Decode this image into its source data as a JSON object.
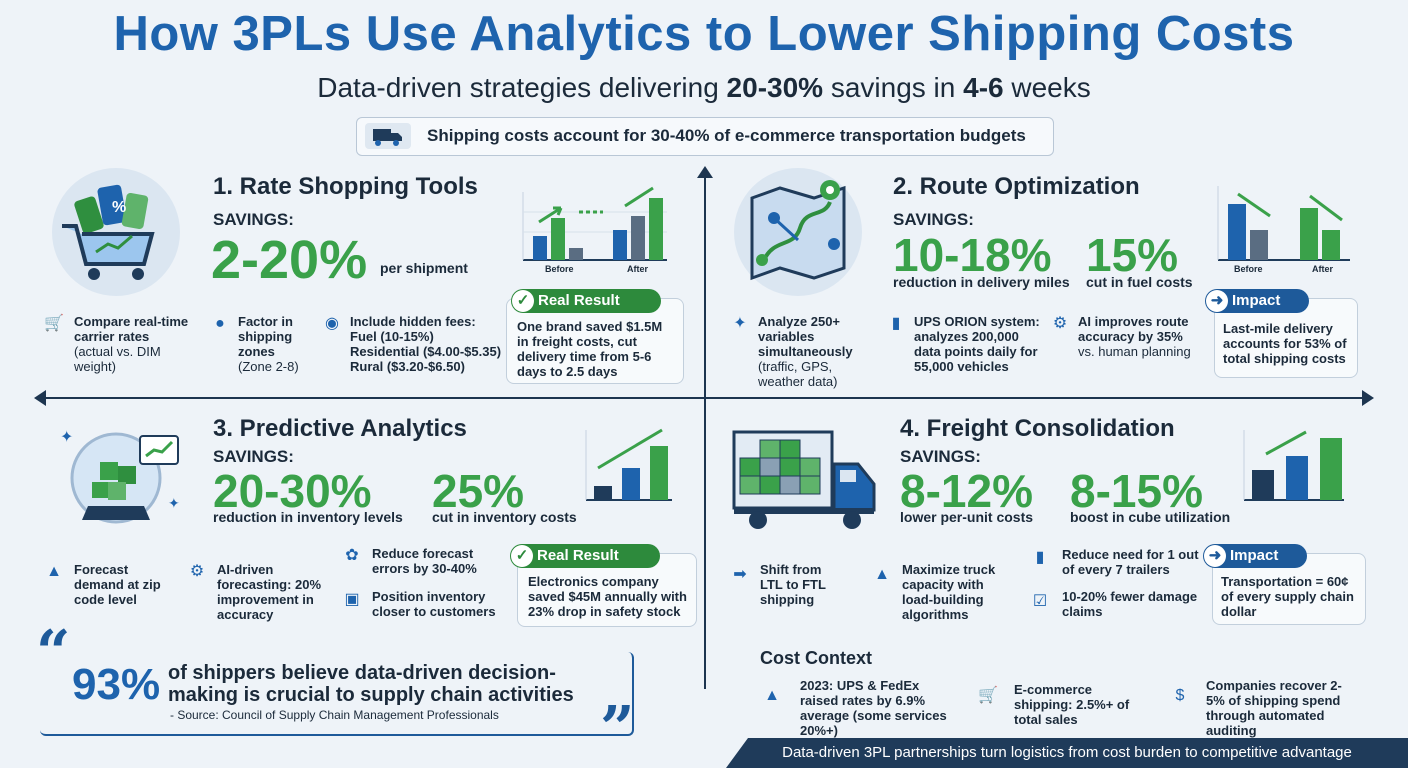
{
  "header": {
    "title": "How 3PLs Use Analytics to Lower Shipping Costs",
    "subtitle_pre": "Data-driven strategies delivering ",
    "subtitle_b1": "20-30%",
    "subtitle_mid": " savings in ",
    "subtitle_b2": "4-6",
    "subtitle_post": " weeks",
    "banner": "Shipping costs account for 30-40% of e-commerce transportation budgets"
  },
  "colors": {
    "title": "#1e63ad",
    "green": "#3aa14a",
    "navy": "#1f3b5a",
    "blue": "#1e5a9a"
  },
  "s1": {
    "title": "1. Rate Shopping Tools",
    "savings_label": "SAVINGS:",
    "big": "2-20%",
    "unit": "per shipment",
    "chart_before": "Before",
    "chart_after": "After",
    "b1": "Compare real-time carrier rates",
    "b1n": "(actual vs. DIM weight)",
    "b2": "Factor in shipping zones",
    "b2n": "(Zone 2-8)",
    "b3": "Include hidden fees:",
    "b3a": "Fuel (10-15%)",
    "b3b": "Residential ($4.00-$5.35)",
    "b3c": "Rural ($3.20-$6.50)",
    "card_label": "Real Result",
    "card_text": "One brand saved $1.5M in freight costs, cut delivery time from 5-6 days to 2.5 days"
  },
  "s2": {
    "title": "2. Route Optimization",
    "savings_label": "SAVINGS:",
    "big1": "10-18%",
    "cap1": "reduction in delivery miles",
    "big2": "15%",
    "cap2": "cut in fuel costs",
    "chart_before": "Before",
    "chart_after": "After",
    "b1": "Analyze 250+ variables simultaneously",
    "b1n": "(traffic, GPS, weather data)",
    "b2": "UPS ORION system: analyzes 200,000 data points daily for 55,000 vehicles",
    "b3": "AI improves route accuracy by 35%",
    "b3n": "vs. human planning",
    "card_label": "Impact",
    "card_text": "Last-mile delivery accounts for 53% of total shipping costs"
  },
  "s3": {
    "title": "3. Predictive Analytics",
    "savings_label": "SAVINGS:",
    "big1": "20-30%",
    "cap1": "reduction in inventory levels",
    "big2": "25%",
    "cap2": "cut in inventory costs",
    "b1": "Forecast demand at zip code level",
    "b2": "AI-driven forecasting: 20% improvement in accuracy",
    "b3": "Reduce forecast errors by 30-40%",
    "b4": "Position inventory closer to customers",
    "card_label": "Real Result",
    "card_text": "Electronics company saved $45M annually with 23% drop in safety stock"
  },
  "s4": {
    "title": "4. Freight Consolidation",
    "savings_label": "SAVINGS:",
    "big1": "8-12%",
    "cap1": "lower per-unit costs",
    "big2": "8-15%",
    "cap2": "boost in cube utilization",
    "b1": "Shift from LTL to FTL shipping",
    "b2": "Maximize truck capacity with load-building algorithms",
    "b3": "Reduce need for 1 out of every 7 trailers",
    "b4": "10-20% fewer damage claims",
    "card_label": "Impact",
    "card_text": "Transportation = 60¢ of every supply chain dollar"
  },
  "quote": {
    "stat": "93%",
    "text": "of shippers believe data-driven decision-making is crucial to supply chain activities",
    "source": "- Source: Council of Supply Chain Management Professionals"
  },
  "context": {
    "title": "Cost Context",
    "c1": "2023: UPS & FedEx raised rates by 6.9% average (some services 20%+)",
    "c2": "E-commerce shipping: 2.5%+ of total sales",
    "c3": "Companies recover 2-5% of shipping spend through automated auditing"
  },
  "footer": "Data-driven 3PL partnerships turn logistics from cost burden to competitive advantage"
}
